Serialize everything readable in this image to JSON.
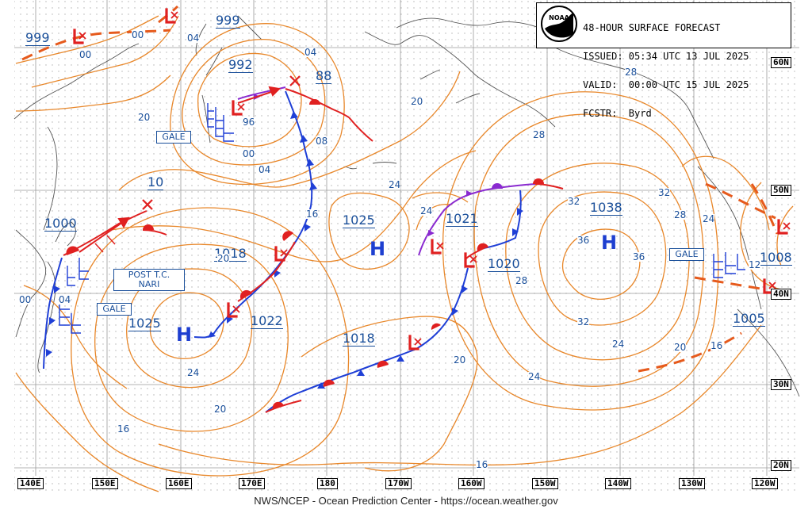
{
  "title_block": {
    "line1": "48-HOUR SURFACE FORECAST",
    "line2": "ISSUED: 05:34 UTC 13 JUL 2025",
    "line3": "VALID:  00:00 UTC 15 JUL 2025",
    "line4": "FCSTR:  Byrd",
    "logo_text": "NOAA"
  },
  "footer": "NWS/NCEP - Ocean Prediction Center - https://ocean.weather.gov",
  "longitude_labels": [
    "140E",
    "150E",
    "160E",
    "170E",
    "180",
    "170W",
    "160W",
    "150W",
    "140W",
    "130W",
    "120W"
  ],
  "latitude_labels": [
    "60N",
    "50N",
    "40N",
    "30N",
    "20N"
  ],
  "pressure_centers": {
    "low_999_west": "999",
    "low_999_north": "999",
    "low_992": "992",
    "low_88": "88",
    "low_1000": "1000",
    "low_10": "10",
    "low_1018_mid": "1018",
    "high_1025_central": "1025",
    "low_1021": "1021",
    "low_1020": "1020",
    "high_1038": "1038",
    "low_1008": "1008",
    "low_1005": "1005",
    "high_1025_west": "1025",
    "low_1022": "1022",
    "low_1018_south": "1018"
  },
  "isobar_labels": [
    "00",
    "00",
    "04",
    "04",
    "96",
    "00",
    "04",
    "08",
    "20",
    "24",
    "16",
    "24",
    "28",
    "32",
    "36",
    "36",
    "28",
    "32",
    "28",
    "24",
    "20",
    "16",
    "20",
    "24",
    "28",
    "32",
    "24",
    "20",
    "16",
    "12",
    "16",
    "20",
    "24",
    "00",
    "04",
    "20"
  ],
  "boxed_labels": {
    "gale_nw": "GALE",
    "gale_west": "GALE",
    "gale_east": "GALE",
    "post_tc_line1": "POST T.C.",
    "post_tc_line2": "NARI"
  },
  "high_symbols": [
    "H",
    "H",
    "H"
  ],
  "colors": {
    "isobar": "#e8872a",
    "cold_front": "#1f3fd6",
    "warm_front": "#e02020",
    "occluded_front": "#8a2ad0",
    "trough": "#e65a1c",
    "low_symbol": "#e02020",
    "label": "#1a4f9a",
    "coast": "#555555",
    "grid": "#9a9a9a"
  }
}
